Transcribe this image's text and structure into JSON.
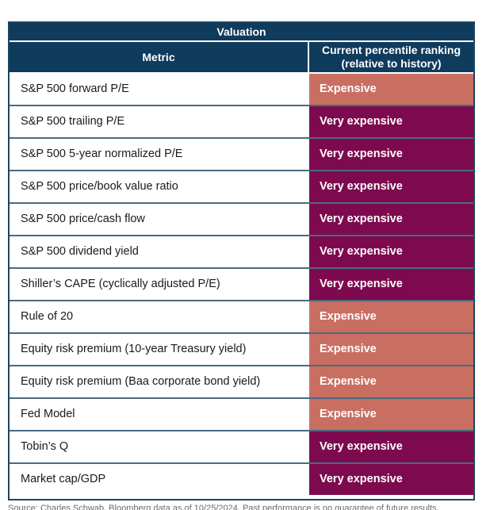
{
  "chart_data": {
    "type": "table",
    "title": "Valuation",
    "columns": [
      "Metric",
      "Current percentile ranking (relative to history)"
    ],
    "header_rank_line1": "Current percentile ranking",
    "header_rank_line2": "(relative to history)",
    "rows": [
      {
        "metric": "S&P 500 forward P/E",
        "ranking": "Expensive"
      },
      {
        "metric": "S&P 500 trailing P/E",
        "ranking": "Very expensive"
      },
      {
        "metric": "S&P 500 5-year normalized P/E",
        "ranking": "Very expensive"
      },
      {
        "metric": "S&P 500 price/book value ratio",
        "ranking": "Very expensive"
      },
      {
        "metric": "S&P 500 price/cash flow",
        "ranking": "Very expensive"
      },
      {
        "metric": "S&P 500 dividend yield",
        "ranking": "Very expensive"
      },
      {
        "metric": "Shiller’s CAPE (cyclically adjusted P/E)",
        "ranking": "Very expensive"
      },
      {
        "metric": "Rule of 20",
        "ranking": "Expensive"
      },
      {
        "metric": "Equity risk premium (10-year Treasury yield)",
        "ranking": "Expensive"
      },
      {
        "metric": "Equity risk premium (Baa corporate bond yield)",
        "ranking": "Expensive"
      },
      {
        "metric": "Fed Model",
        "ranking": "Expensive"
      },
      {
        "metric": "Tobin’s Q",
        "ranking": "Very expensive"
      },
      {
        "metric": "Market cap/GDP",
        "ranking": "Very expensive"
      }
    ]
  },
  "colors": {
    "header_bg": "#0f3b5c",
    "expensive": "#c96f62",
    "very_expensive": "#7d0a4f"
  },
  "footnote": "Source: Charles Schwab, Bloomberg data as of 10/25/2024. Past performance is no guarantee of future results."
}
